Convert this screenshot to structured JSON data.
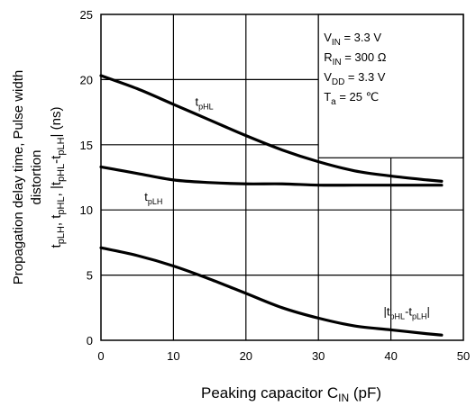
{
  "chart_data": {
    "type": "line",
    "xlabel": {
      "main": "Peaking capacitor  C",
      "sub": "IN",
      "unit": "(pF)"
    },
    "ylabel_line1": "Propagation delay time, Pulse width",
    "ylabel_line2": "distortion",
    "ylabel_line3_parts": [
      {
        "t": "t",
        "s": "base"
      },
      {
        "t": "pLH",
        "s": "sub"
      },
      {
        "t": ", t",
        "s": "base"
      },
      {
        "t": "pHL",
        "s": "sub"
      },
      {
        "t": ", |t",
        "s": "base"
      },
      {
        "t": "pHL",
        "s": "sub"
      },
      {
        "t": "-t",
        "s": "base"
      },
      {
        "t": "pLH",
        "s": "sub"
      },
      {
        "t": "|  (ns)",
        "s": "base"
      }
    ],
    "xlim": [
      0,
      50
    ],
    "ylim": [
      0,
      25
    ],
    "xticks": [
      0,
      10,
      20,
      30,
      40,
      50
    ],
    "yticks": [
      0,
      5,
      10,
      15,
      20,
      25
    ],
    "grid": true,
    "series": [
      {
        "label_parts": [
          {
            "t": "t",
            "s": "base"
          },
          {
            "t": "pHL",
            "s": "sub"
          }
        ],
        "label_at": [
          13,
          18
        ],
        "x": [
          0,
          5,
          10,
          15,
          20,
          25,
          30,
          35,
          40,
          45,
          47
        ],
        "y": [
          20.3,
          19.3,
          18.1,
          16.9,
          15.7,
          14.6,
          13.7,
          13.0,
          12.6,
          12.3,
          12.2
        ]
      },
      {
        "label_parts": [
          {
            "t": "t",
            "s": "base"
          },
          {
            "t": "pLH",
            "s": "sub"
          }
        ],
        "label_at": [
          6,
          10.7
        ],
        "x": [
          0,
          5,
          10,
          15,
          20,
          25,
          30,
          35,
          40,
          45,
          47
        ],
        "y": [
          13.3,
          12.8,
          12.3,
          12.1,
          12.0,
          12.0,
          11.9,
          11.9,
          11.9,
          11.9,
          11.9
        ]
      },
      {
        "label_parts": [
          {
            "t": "|t",
            "s": "base"
          },
          {
            "t": "pHL",
            "s": "sub"
          },
          {
            "t": "-t",
            "s": "base"
          },
          {
            "t": "pLH",
            "s": "sub"
          },
          {
            "t": "|",
            "s": "base"
          }
        ],
        "label_at": [
          39,
          1.9
        ],
        "x": [
          0,
          5,
          10,
          15,
          20,
          25,
          30,
          35,
          40,
          45,
          47
        ],
        "y": [
          7.1,
          6.5,
          5.7,
          4.7,
          3.6,
          2.5,
          1.7,
          1.1,
          0.8,
          0.5,
          0.4
        ]
      }
    ],
    "conditions": [
      [
        {
          "t": "V",
          "s": "base"
        },
        {
          "t": "IN",
          "s": "sub"
        },
        {
          "t": " = 3.3 V",
          "s": "base"
        }
      ],
      [
        {
          "t": "R",
          "s": "base"
        },
        {
          "t": "IN",
          "s": "sub"
        },
        {
          "t": " = 300 Ω",
          "s": "base"
        }
      ],
      [
        {
          "t": "V",
          "s": "base"
        },
        {
          "t": "DD",
          "s": "sub"
        },
        {
          "t": " = 3.3 V",
          "s": "base"
        }
      ],
      [
        {
          "t": "T",
          "s": "base"
        },
        {
          "t": "a",
          "s": "sub"
        },
        {
          "t": " = 25 ℃",
          "s": "base"
        }
      ]
    ],
    "colors": {
      "line": "#000000",
      "grid": "#000000",
      "background": "#ffffff"
    }
  }
}
